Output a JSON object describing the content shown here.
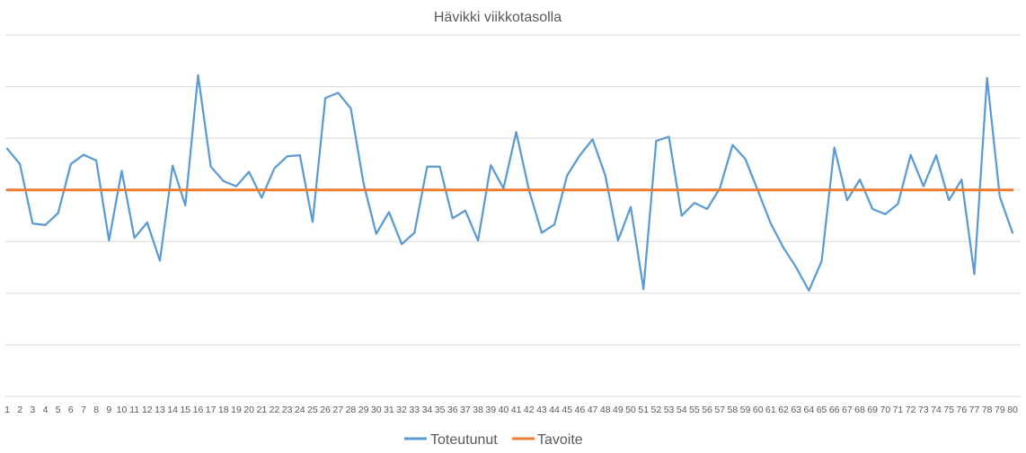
{
  "chart_data": {
    "type": "line",
    "title": "Hävikki viikkotasolla",
    "xlabel": "",
    "ylabel": "",
    "categories": [
      "1",
      "2",
      "3",
      "4",
      "5",
      "6",
      "7",
      "8",
      "9",
      "10",
      "11",
      "12",
      "13",
      "14",
      "15",
      "16",
      "17",
      "18",
      "19",
      "20",
      "21",
      "22",
      "23",
      "24",
      "25",
      "26",
      "27",
      "28",
      "29",
      "30",
      "31",
      "32",
      "33",
      "34",
      "35",
      "36",
      "37",
      "38",
      "39",
      "40",
      "41",
      "42",
      "43",
      "44",
      "45",
      "46",
      "47",
      "48",
      "49",
      "50",
      "51",
      "52",
      "53",
      "54",
      "55",
      "56",
      "57",
      "58",
      "59",
      "60",
      "61",
      "62",
      "63",
      "64",
      "65",
      "66",
      "67",
      "68",
      "69",
      "70",
      "71",
      "72",
      "73",
      "74",
      "75",
      "76",
      "77",
      "78",
      "79",
      "80"
    ],
    "ylim": [
      0,
      7
    ],
    "grid": true,
    "legend_position": "bottom",
    "series": [
      {
        "name": "Toteutunut",
        "color": "#5b9bd5",
        "values": [
          4.8,
          4.5,
          3.35,
          3.32,
          3.55,
          4.5,
          4.68,
          4.57,
          3.02,
          4.37,
          3.07,
          3.37,
          2.63,
          4.47,
          3.7,
          6.22,
          4.45,
          4.17,
          4.07,
          4.35,
          3.85,
          4.42,
          4.65,
          4.67,
          3.38,
          5.78,
          5.88,
          5.58,
          4.13,
          3.15,
          3.57,
          2.95,
          3.17,
          4.45,
          4.45,
          3.45,
          3.6,
          3.02,
          4.48,
          4.03,
          5.12,
          4.0,
          3.17,
          3.33,
          4.28,
          4.67,
          4.98,
          4.28,
          3.02,
          3.67,
          2.08,
          4.95,
          5.03,
          3.5,
          3.75,
          3.63,
          4.03,
          4.87,
          4.6,
          3.98,
          3.35,
          2.88,
          2.5,
          2.05,
          2.62,
          4.82,
          3.8,
          4.2,
          3.63,
          3.53,
          3.73,
          4.68,
          4.07,
          4.67,
          3.8,
          4.2,
          2.37,
          6.17,
          3.87,
          3.17
        ]
      },
      {
        "name": "Tavoite",
        "color": "#ed7d31",
        "values": [
          4,
          4,
          4,
          4,
          4,
          4,
          4,
          4,
          4,
          4,
          4,
          4,
          4,
          4,
          4,
          4,
          4,
          4,
          4,
          4,
          4,
          4,
          4,
          4,
          4,
          4,
          4,
          4,
          4,
          4,
          4,
          4,
          4,
          4,
          4,
          4,
          4,
          4,
          4,
          4,
          4,
          4,
          4,
          4,
          4,
          4,
          4,
          4,
          4,
          4,
          4,
          4,
          4,
          4,
          4,
          4,
          4,
          4,
          4,
          4,
          4,
          4,
          4,
          4,
          4,
          4,
          4,
          4,
          4,
          4,
          4,
          4,
          4,
          4,
          4,
          4,
          4,
          4,
          4,
          4
        ]
      }
    ]
  }
}
